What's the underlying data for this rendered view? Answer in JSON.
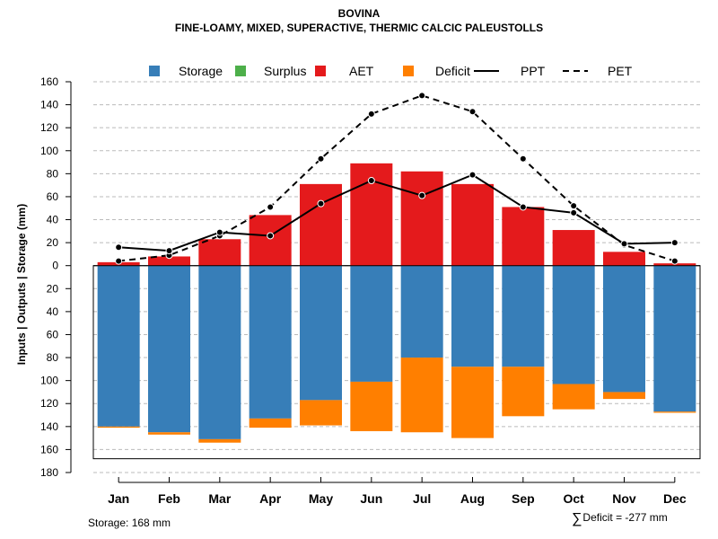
{
  "title": "BOVINA",
  "subtitle": "FINE-LOAMY, MIXED, SUPERACTIVE, THERMIC CALCIC PALEUSTOLLS",
  "footer": {
    "storage_text": "Storage: 168 mm",
    "deficit_symbol": "∑",
    "deficit_text": "Deficit = -277 mm"
  },
  "colors": {
    "storage": "#377EB8",
    "surplus": "#4DAF4A",
    "aet": "#E41A1C",
    "deficit": "#FF7F00",
    "grid": "#bbbbbb",
    "line": "#000000"
  },
  "legend": [
    {
      "key": "storage",
      "label": "Storage",
      "kind": "box"
    },
    {
      "key": "surplus",
      "label": "Surplus",
      "kind": "box"
    },
    {
      "key": "aet",
      "label": "AET",
      "kind": "box"
    },
    {
      "key": "deficit",
      "label": "Deficit",
      "kind": "box"
    },
    {
      "key": "ppt",
      "label": "PPT",
      "kind": "solid"
    },
    {
      "key": "pet",
      "label": "PET",
      "kind": "dashed"
    }
  ],
  "chart_data": {
    "type": "bar",
    "ylabel": "Inputs | Outputs | Storage    (mm)",
    "ylim": [
      -180,
      160
    ],
    "yticks": [
      -180,
      -160,
      -140,
      -120,
      -100,
      -80,
      -60,
      -40,
      -20,
      0,
      20,
      40,
      60,
      80,
      100,
      120,
      140,
      160
    ],
    "ytick_labels": [
      "180",
      "160",
      "140",
      "120",
      "100",
      "80",
      "60",
      "40",
      "20",
      "0",
      "20",
      "40",
      "60",
      "80",
      "100",
      "120",
      "140",
      "160"
    ],
    "categories": [
      "Jan",
      "Feb",
      "Mar",
      "Apr",
      "May",
      "Jun",
      "Jul",
      "Aug",
      "Sep",
      "Oct",
      "Nov",
      "Dec"
    ],
    "aet": [
      3,
      8,
      23,
      44,
      71,
      89,
      82,
      71,
      51,
      31,
      12,
      2
    ],
    "storage": [
      -140,
      -145,
      -151,
      -133,
      -117,
      -101,
      -80,
      -88,
      -88,
      -103,
      -110,
      -127
    ],
    "deficit": [
      -1,
      -2,
      -3,
      -8,
      -22,
      -43,
      -65,
      -62,
      -43,
      -22,
      -6,
      -1
    ],
    "ppt": [
      16,
      13,
      29,
      26,
      54,
      74,
      61,
      79,
      51,
      46,
      19,
      20
    ],
    "pet": [
      4,
      9,
      26,
      51,
      93,
      132,
      148,
      134,
      93,
      52,
      18,
      4
    ],
    "storage_capacity": 168,
    "grid": true,
    "legend_position": "top"
  }
}
